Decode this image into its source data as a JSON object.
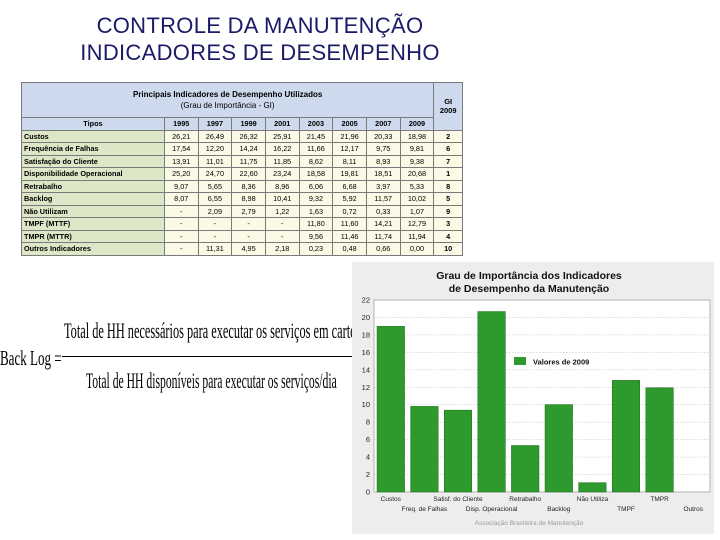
{
  "slide": {
    "title_line1": "CONTROLE DA MANUTENÇÃO",
    "title_line2": "INDICADORES DE DESEMPENHO"
  },
  "table": {
    "title_line1": "Principais Indicadores de Desempenho Utilizados",
    "title_line2": "(Grau de Importância - GI)",
    "gi_line1": "GI",
    "gi_line2": "2009",
    "tipos_header": "Tipos",
    "years": [
      "1995",
      "1997",
      "1999",
      "2001",
      "2003",
      "2005",
      "2007",
      "2009"
    ],
    "rows": [
      {
        "label": "Custos",
        "values": [
          "26,21",
          "26,49",
          "26,32",
          "25,91",
          "21,45",
          "21,96",
          "20,33",
          "18,98"
        ],
        "gi": "2"
      },
      {
        "label": "Frequência de Falhas",
        "values": [
          "17,54",
          "12,20",
          "14,24",
          "16,22",
          "11,66",
          "12,17",
          "9,75",
          "9,81"
        ],
        "gi": "6"
      },
      {
        "label": "Satisfação do Cliente",
        "values": [
          "13,91",
          "11,01",
          "11,75",
          "11,85",
          "8,62",
          "8,11",
          "8,93",
          "9,38"
        ],
        "gi": "7"
      },
      {
        "label": "Disponibilidade Operacional",
        "values": [
          "25,20",
          "24,70",
          "22,60",
          "23,24",
          "18,58",
          "19,81",
          "18,51",
          "20,68"
        ],
        "gi": "1"
      },
      {
        "label": "Retrabalho",
        "values": [
          "9,07",
          "5,65",
          "8,36",
          "8,96",
          "6,06",
          "6,68",
          "3,97",
          "5,33"
        ],
        "gi": "8"
      },
      {
        "label": "Backlog",
        "values": [
          "8,07",
          "6,55",
          "8,98",
          "10,41",
          "9,32",
          "5,92",
          "11,57",
          "10,02"
        ],
        "gi": "5"
      },
      {
        "label": "Não Utilizam",
        "values": [
          "-",
          "2,09",
          "2,79",
          "1,22",
          "1,63",
          "0,72",
          "0,33",
          "1,07"
        ],
        "gi": "9"
      },
      {
        "label": "TMPF (MTTF)",
        "values": [
          "-",
          "-",
          "-",
          "-",
          "11,80",
          "11,60",
          "14,21",
          "12,79"
        ],
        "gi": "3"
      },
      {
        "label": "TMPR (MTTR)",
        "values": [
          "-",
          "-",
          "-",
          "-",
          "9,56",
          "11,46",
          "11,74",
          "11,94"
        ],
        "gi": "4"
      },
      {
        "label": "Outros Indicadores",
        "values": [
          "-",
          "11,31",
          "4,95",
          "2,18",
          "0,23",
          "0,48",
          "0,66",
          "0,00"
        ],
        "gi": "10"
      }
    ]
  },
  "formula": {
    "lhs": "Back Log =",
    "numerator": "Total de HH necessários para executar os serviços em carteira",
    "denominator": "Total de HH disponíveis para executar os serviços/dia"
  },
  "chart_data": {
    "type": "bar",
    "title_line1": "Grau de Importância dos Indicadores",
    "title_line2": "de Desempenho da Manutenção",
    "categories": [
      "Custos",
      "Freq. de Falhas",
      "Satisf. do Cliente",
      "Disp. Operacional",
      "Retrabalho",
      "Backlog",
      "Não Utiliza",
      "TMPF",
      "TMPR",
      "Outros"
    ],
    "series": [
      {
        "name": "Valores de 2009",
        "values": [
          18.98,
          9.81,
          9.38,
          20.68,
          5.33,
          10.02,
          1.07,
          12.79,
          11.94,
          0.0
        ]
      }
    ],
    "ylim": [
      0,
      22
    ],
    "yticks": [
      "0",
      "2",
      "4",
      "6",
      "8",
      "10",
      "12",
      "14",
      "16",
      "18",
      "20",
      "22"
    ],
    "grid": true,
    "legend_position": "right",
    "bar_color": "#2e9a2e",
    "footer": "Associação Brasileira de Manutenção"
  }
}
